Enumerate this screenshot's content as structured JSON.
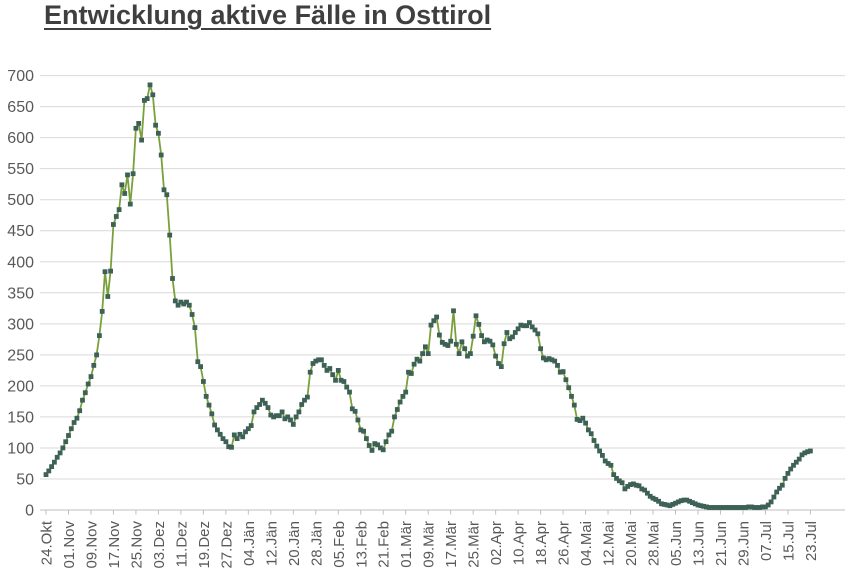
{
  "chart_data": {
    "type": "line",
    "title": "Entwicklung aktive Fälle in Osttirol",
    "xlabel": "",
    "ylabel": "",
    "ylim": [
      0,
      700
    ],
    "y_tick_step": 50,
    "y_ticks": [
      0,
      50,
      100,
      150,
      200,
      250,
      300,
      350,
      400,
      450,
      500,
      550,
      600,
      650,
      700
    ],
    "grid": true,
    "legend": "none",
    "marker": "square",
    "x_tick_interval_days": 8,
    "x_tick_labels": [
      "24.Okt",
      "01.Nov",
      "09.Nov",
      "17.Nov",
      "25.Nov",
      "03.Dez",
      "11.Dez",
      "19.Dez",
      "27.Dez",
      "04.Jän",
      "12.Jän",
      "20.Jän",
      "28.Jän",
      "05.Feb",
      "13.Feb",
      "21.Feb",
      "01.Mär",
      "09.Mär",
      "17.Mär",
      "25.Mär",
      "02.Apr",
      "10.Apr",
      "18.Apr",
      "26.Apr",
      "04.Mai",
      "12.Mai",
      "20.Mai",
      "28.Mai",
      "05.Jun",
      "13.Jun",
      "21.Jun",
      "29.Jun",
      "07.Jul",
      "15.Jul",
      "23.Jul"
    ],
    "series": [
      {
        "name": "aktive Fälle",
        "values": [
          57,
          63,
          70,
          77,
          85,
          92,
          100,
          110,
          120,
          131,
          141,
          148,
          160,
          177,
          189,
          203,
          215,
          233,
          250,
          281,
          320,
          384,
          344,
          385,
          460,
          473,
          484,
          524,
          510,
          540,
          493,
          542,
          615,
          623,
          596,
          660,
          663,
          685,
          669,
          620,
          607,
          572,
          516,
          508,
          443,
          373,
          337,
          330,
          335,
          332,
          335,
          330,
          315,
          294,
          239,
          231,
          207,
          183,
          169,
          155,
          137,
          129,
          122,
          115,
          110,
          102,
          101,
          121,
          115,
          122,
          118,
          126,
          131,
          136,
          158,
          165,
          170,
          177,
          172,
          165,
          153,
          150,
          152,
          152,
          158,
          147,
          150,
          145,
          138,
          150,
          158,
          170,
          177,
          182,
          222,
          236,
          240,
          242,
          242,
          233,
          225,
          228,
          218,
          209,
          225,
          209,
          207,
          198,
          190,
          163,
          159,
          145,
          129,
          127,
          115,
          104,
          96,
          107,
          105,
          100,
          97,
          110,
          121,
          127,
          150,
          162,
          174,
          183,
          190,
          222,
          220,
          235,
          243,
          240,
          252,
          263,
          252,
          298,
          305,
          311,
          282,
          270,
          267,
          265,
          272,
          321,
          267,
          252,
          271,
          260,
          248,
          252,
          280,
          313,
          299,
          281,
          271,
          274,
          272,
          266,
          248,
          236,
          231,
          268,
          286,
          276,
          279,
          286,
          292,
          298,
          297,
          297,
          302,
          295,
          290,
          284,
          260,
          245,
          242,
          244,
          242,
          240,
          233,
          222,
          223,
          210,
          197,
          183,
          169,
          146,
          144,
          148,
          140,
          129,
          123,
          112,
          103,
          95,
          88,
          79,
          75,
          72,
          57,
          51,
          47,
          44,
          34,
          38,
          41,
          42,
          40,
          39,
          34,
          32,
          27,
          22,
          19,
          17,
          14,
          10,
          9,
          8,
          7,
          9,
          11,
          13,
          15,
          16,
          16,
          14,
          12,
          10,
          8,
          7,
          6,
          5,
          4,
          4,
          4,
          4,
          4,
          4,
          4,
          4,
          4,
          4,
          4,
          4,
          4,
          4,
          5,
          5,
          4,
          4,
          4,
          5,
          5,
          8,
          13,
          21,
          29,
          35,
          40,
          51,
          59,
          66,
          72,
          77,
          82,
          89,
          92,
          94,
          95
        ]
      }
    ],
    "colors": {
      "line": "#7aa03c",
      "marker": "#3e6157",
      "gridline": "#d9d9d9",
      "axis": "#bfbfbf",
      "tick_label": "#595959",
      "title": "#3f3f3f"
    }
  }
}
